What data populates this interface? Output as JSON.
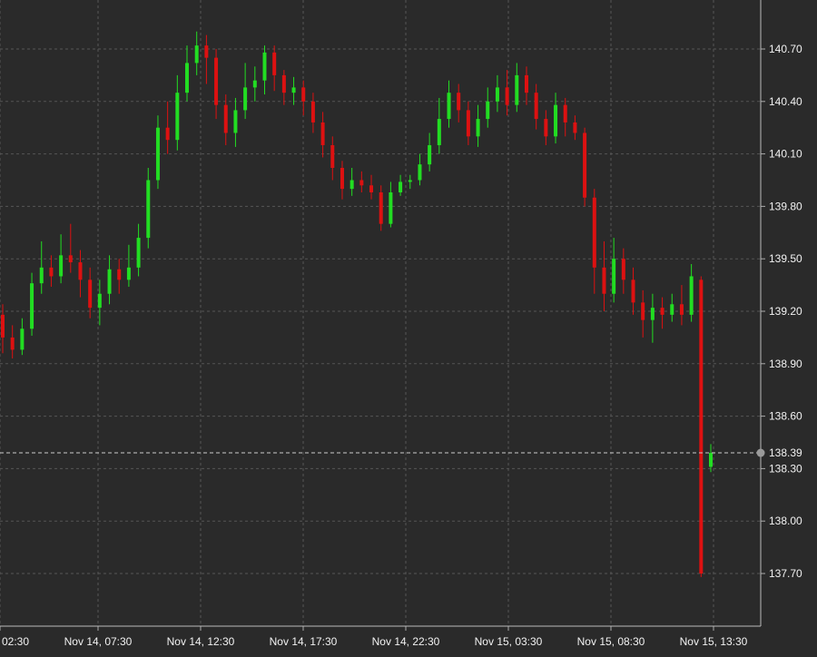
{
  "chart_data": {
    "type": "candlestick",
    "title": "",
    "xlabel": "",
    "ylabel": "",
    "ylim": [
      137.45,
      140.9
    ],
    "y_ticks": [
      "140.70",
      "140.40",
      "140.10",
      "139.80",
      "139.50",
      "139.20",
      "138.90",
      "138.60",
      "138.30",
      "138.00",
      "137.70"
    ],
    "x_ticks": [
      "02:30",
      "Nov 14, 07:30",
      "Nov 14, 12:30",
      "Nov 14, 17:30",
      "Nov 14, 22:30",
      "Nov 15, 03:30",
      "Nov 15, 08:30",
      "Nov 15, 13:30"
    ],
    "last_price": {
      "value": 138.39,
      "label": "138.39"
    },
    "grid": true,
    "colors": {
      "background": "#2a2a2a",
      "grid": "#555555",
      "up": "#22dd22",
      "down": "#dd1111",
      "text": "#f2f2f2",
      "last_price_line": "#cccccc"
    },
    "candles": [
      [
        139.18,
        139.05,
        139.24,
        138.96
      ],
      [
        139.05,
        138.98,
        139.12,
        138.93
      ],
      [
        138.98,
        139.1,
        139.16,
        138.95
      ],
      [
        139.1,
        139.36,
        139.42,
        139.06
      ],
      [
        139.36,
        139.45,
        139.6,
        139.3
      ],
      [
        139.45,
        139.4,
        139.52,
        139.34
      ],
      [
        139.4,
        139.52,
        139.64,
        139.36
      ],
      [
        139.52,
        139.48,
        139.7,
        139.42
      ],
      [
        139.48,
        139.38,
        139.55,
        139.28
      ],
      [
        139.38,
        139.22,
        139.45,
        139.16
      ],
      [
        139.22,
        139.3,
        139.38,
        139.12
      ],
      [
        139.3,
        139.44,
        139.52,
        139.24
      ],
      [
        139.44,
        139.38,
        139.5,
        139.3
      ],
      [
        139.38,
        139.45,
        139.58,
        139.34
      ],
      [
        139.45,
        139.62,
        139.7,
        139.4
      ],
      [
        139.62,
        139.95,
        140.02,
        139.56
      ],
      [
        139.95,
        140.25,
        140.32,
        139.9
      ],
      [
        140.25,
        140.18,
        140.4,
        140.1
      ],
      [
        140.18,
        140.45,
        140.55,
        140.12
      ],
      [
        140.45,
        140.62,
        140.72,
        140.4
      ],
      [
        140.62,
        140.72,
        140.8,
        140.55
      ],
      [
        140.72,
        140.65,
        140.78,
        140.5
      ],
      [
        140.65,
        140.38,
        140.7,
        140.3
      ],
      [
        140.38,
        140.22,
        140.44,
        140.15
      ],
      [
        140.22,
        140.35,
        140.42,
        140.14
      ],
      [
        140.35,
        140.48,
        140.62,
        140.3
      ],
      [
        140.48,
        140.52,
        140.6,
        140.4
      ],
      [
        140.52,
        140.68,
        140.72,
        140.44
      ],
      [
        140.68,
        140.55,
        140.72,
        140.46
      ],
      [
        140.55,
        140.45,
        140.58,
        140.38
      ],
      [
        140.45,
        140.48,
        140.54,
        140.38
      ],
      [
        140.48,
        140.4,
        140.52,
        140.32
      ],
      [
        140.4,
        140.28,
        140.45,
        140.22
      ],
      [
        140.28,
        140.15,
        140.34,
        140.08
      ],
      [
        140.15,
        140.02,
        140.2,
        139.95
      ],
      [
        140.02,
        139.9,
        140.06,
        139.84
      ],
      [
        139.9,
        139.95,
        140.02,
        139.86
      ],
      [
        139.95,
        139.92,
        140.0,
        139.88
      ],
      [
        139.92,
        139.88,
        139.98,
        139.84
      ],
      [
        139.88,
        139.7,
        139.92,
        139.66
      ],
      [
        139.7,
        139.88,
        139.94,
        139.68
      ],
      [
        139.88,
        139.94,
        139.98,
        139.86
      ],
      [
        139.94,
        139.95,
        139.98,
        139.9
      ],
      [
        139.95,
        140.04,
        140.1,
        139.92
      ],
      [
        140.04,
        140.15,
        140.22,
        140.0
      ],
      [
        140.15,
        140.3,
        140.42,
        140.1
      ],
      [
        140.3,
        140.45,
        140.52,
        140.25
      ],
      [
        140.45,
        140.35,
        140.5,
        140.28
      ],
      [
        140.35,
        140.2,
        140.4,
        140.15
      ],
      [
        140.2,
        140.3,
        140.38,
        140.14
      ],
      [
        140.3,
        140.4,
        140.48,
        140.25
      ],
      [
        140.4,
        140.48,
        140.55,
        140.34
      ],
      [
        140.48,
        140.38,
        140.58,
        140.32
      ],
      [
        140.38,
        140.55,
        140.62,
        140.34
      ],
      [
        140.55,
        140.45,
        140.6,
        140.38
      ],
      [
        140.45,
        140.3,
        140.5,
        140.24
      ],
      [
        140.3,
        140.2,
        140.35,
        140.15
      ],
      [
        140.2,
        140.38,
        140.45,
        140.16
      ],
      [
        140.38,
        140.28,
        140.42,
        140.2
      ],
      [
        140.28,
        140.22,
        140.32,
        140.18
      ],
      [
        140.22,
        139.85,
        140.25,
        139.8
      ],
      [
        139.85,
        139.45,
        139.9,
        139.3
      ],
      [
        139.45,
        139.3,
        139.6,
        139.2
      ],
      [
        139.3,
        139.5,
        139.62,
        139.25
      ],
      [
        139.5,
        139.38,
        139.56,
        139.3
      ],
      [
        139.38,
        139.25,
        139.45,
        139.18
      ],
      [
        139.25,
        139.15,
        139.32,
        139.05
      ],
      [
        139.15,
        139.22,
        139.3,
        139.02
      ],
      [
        139.22,
        139.18,
        139.28,
        139.1
      ],
      [
        139.18,
        139.24,
        139.3,
        139.14
      ],
      [
        139.24,
        139.18,
        139.35,
        139.12
      ],
      [
        139.18,
        139.4,
        139.47,
        139.14
      ],
      [
        139.38,
        137.7,
        139.4,
        137.68
      ],
      [
        138.31,
        138.39,
        138.44,
        138.28
      ]
    ]
  }
}
